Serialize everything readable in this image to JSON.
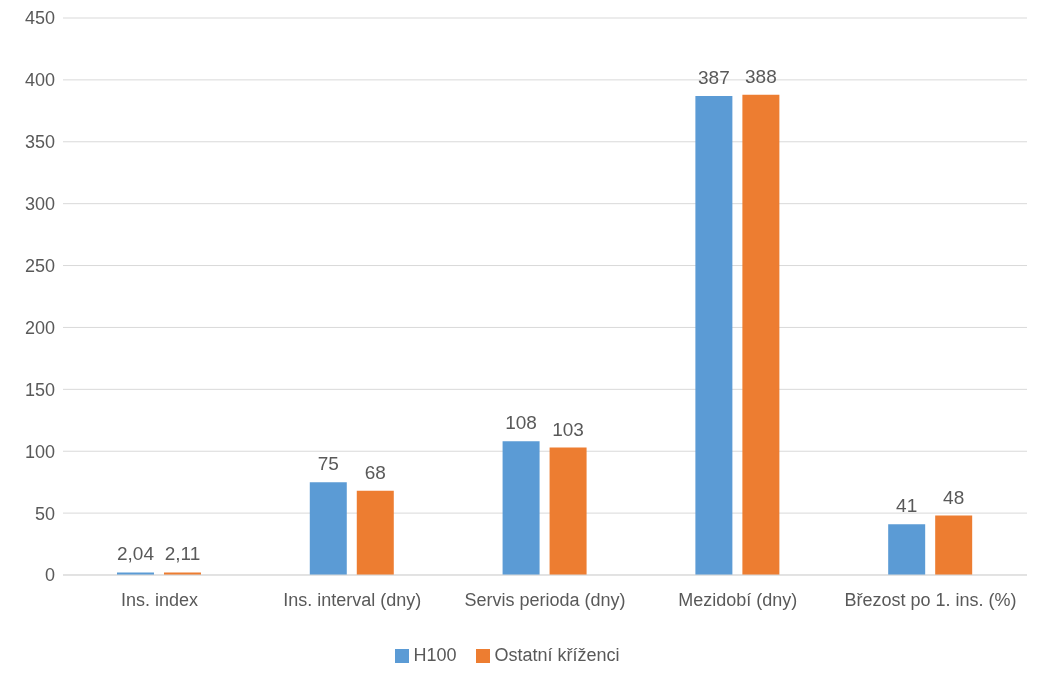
{
  "chart_data": {
    "type": "bar",
    "categories": [
      "Ins. index",
      "Ins. interval (dny)",
      "Servis perioda (dny)",
      "Mezidobí (dny)",
      "Březost po 1. ins. (%)"
    ],
    "series": [
      {
        "name": "H100",
        "color": "#5b9bd5",
        "values": [
          2.04,
          75,
          108,
          387,
          41
        ],
        "value_labels": [
          "2,04",
          "75",
          "108",
          "387",
          "41"
        ]
      },
      {
        "name": "Ostatní kříženci",
        "color": "#ed7d31",
        "values": [
          2.11,
          68,
          103,
          388,
          48
        ],
        "value_labels": [
          "2,11",
          "68",
          "103",
          "388",
          "48"
        ]
      }
    ],
    "ylim": [
      0,
      450
    ],
    "yticks": [
      0,
      50,
      100,
      150,
      200,
      250,
      300,
      350,
      400,
      450
    ],
    "grid": "y",
    "legend": "bottom"
  }
}
